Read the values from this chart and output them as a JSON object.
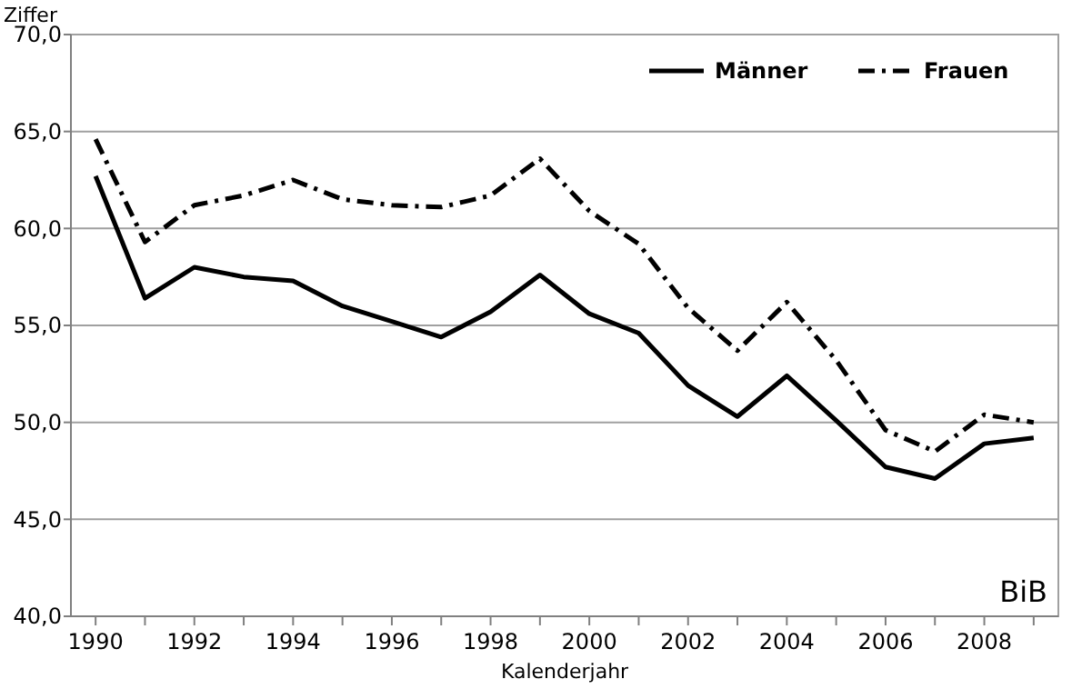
{
  "chart_data": {
    "type": "line",
    "ylabel": "Ziffer",
    "xlabel": "Kalenderjahr",
    "x": [
      1990,
      1991,
      1992,
      1993,
      1994,
      1995,
      1996,
      1997,
      1998,
      1999,
      2000,
      2001,
      2002,
      2003,
      2004,
      2005,
      2006,
      2007,
      2008,
      2009
    ],
    "series": [
      {
        "name": "Männer",
        "color": "#000000",
        "line_style": "solid",
        "values": [
          62.7,
          56.4,
          58.0,
          57.5,
          57.3,
          56.0,
          55.2,
          54.4,
          55.7,
          57.6,
          55.6,
          54.6,
          51.9,
          50.3,
          52.4,
          50.1,
          47.7,
          47.1,
          48.9,
          49.2
        ]
      },
      {
        "name": "Frauen",
        "color": "#000000",
        "line_style": "dashdot",
        "values": [
          64.6,
          59.3,
          61.2,
          61.7,
          62.5,
          61.5,
          61.2,
          61.1,
          61.7,
          63.6,
          60.9,
          59.2,
          55.9,
          53.7,
          56.2,
          53.2,
          49.6,
          48.5,
          50.4,
          50.0
        ]
      }
    ],
    "xlim": [
      1989.5,
      2009.5
    ],
    "xticks": [
      1990,
      {
        "value": 1991,
        "label": null
      },
      1992,
      {
        "value": 1993,
        "label": null
      },
      1994,
      {
        "value": 1995,
        "label": null
      },
      1996,
      {
        "value": 1997,
        "label": null
      },
      1998,
      {
        "value": 1999,
        "label": null
      },
      2000,
      {
        "value": 2001,
        "label": null
      },
      2002,
      {
        "value": 2003,
        "label": null
      },
      2004,
      {
        "value": 2005,
        "label": null
      },
      2006,
      {
        "value": 2007,
        "label": null
      },
      2008,
      {
        "value": 2009,
        "label": null
      }
    ],
    "ylim": [
      40,
      70
    ],
    "yticks": [
      {
        "value": 40,
        "label": "40,0"
      },
      {
        "value": 45,
        "label": "45,0"
      },
      {
        "value": 50,
        "label": "50,0"
      },
      {
        "value": 55,
        "label": "55,0"
      },
      {
        "value": 60,
        "label": "60,0"
      },
      {
        "value": 65,
        "label": "65,0"
      },
      {
        "value": 70,
        "label": "70,0"
      }
    ],
    "grid": "y",
    "legend": "top right",
    "annotations": [
      "BiB"
    ]
  }
}
